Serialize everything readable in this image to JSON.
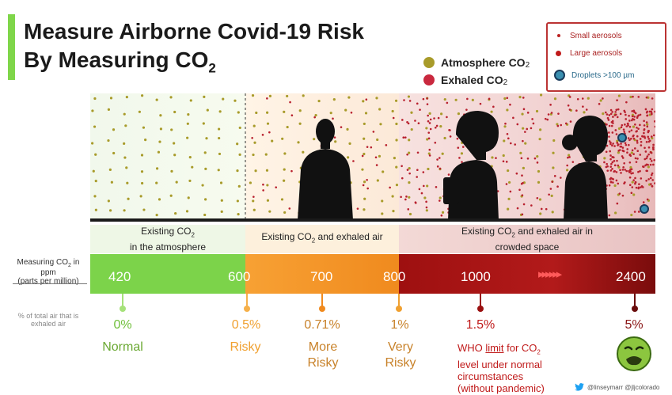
{
  "title": {
    "line1": "Measure Airborne Covid-19 Risk",
    "line2": "By Measuring CO",
    "line2_sub": "2"
  },
  "legend": {
    "atmosphere": {
      "label": "Atmosphere CO",
      "sub": "2",
      "color": "#a89b2a"
    },
    "exhaled": {
      "label": "Exhaled CO",
      "sub": "2",
      "color": "#c9283e"
    },
    "small_aerosols": "Small aerosols",
    "large_aerosols": "Large aerosols",
    "droplets": "Droplets >100 µm"
  },
  "bands": [
    {
      "label": "Existing CO",
      "sub": "2",
      "label2": " in the atmosphere"
    },
    {
      "label": "Existing CO",
      "sub": "2",
      "label2": " and exhaled air"
    },
    {
      "label": "Existing CO",
      "sub": "2",
      "label2": " and exhaled air in crowded space"
    }
  ],
  "axis": {
    "measuring_label": "Measuring CO",
    "measuring_sub": "2",
    "measuring_label2": " in ppm",
    "measuring_note": "(parts per million)",
    "pct_label": "% of total air that is exhaled air"
  },
  "ticks": [
    "420",
    "600",
    "700",
    "800",
    "1000",
    "2400"
  ],
  "arrows": "▸▸▸▸▸▸",
  "markers": [
    {
      "pct": "0%",
      "category": "Normal",
      "color": "#6fbf3a"
    },
    {
      "pct": "0.5%",
      "category": "Risky",
      "color": "#f0a030"
    },
    {
      "pct": "0.71%",
      "category": "More Risky",
      "color": "#c8822a"
    },
    {
      "pct": "1%",
      "category": "Very Risky",
      "color": "#c8822a"
    },
    {
      "pct": "1.5%",
      "category": "WHO limit for CO2 level under normal circumstances (without pandemic)",
      "color": "#c01a1a"
    },
    {
      "pct": "5%",
      "category": "",
      "color": "#8a1515"
    }
  ],
  "who": {
    "who_text": "WHO ",
    "limit": "limit",
    "rest1": " for CO",
    "sub": "2",
    "rest2": "level under normal",
    "rest3": "circumstances",
    "rest4": "(without pandemic)"
  },
  "credit": "@linseymarr @jljcolorado"
}
